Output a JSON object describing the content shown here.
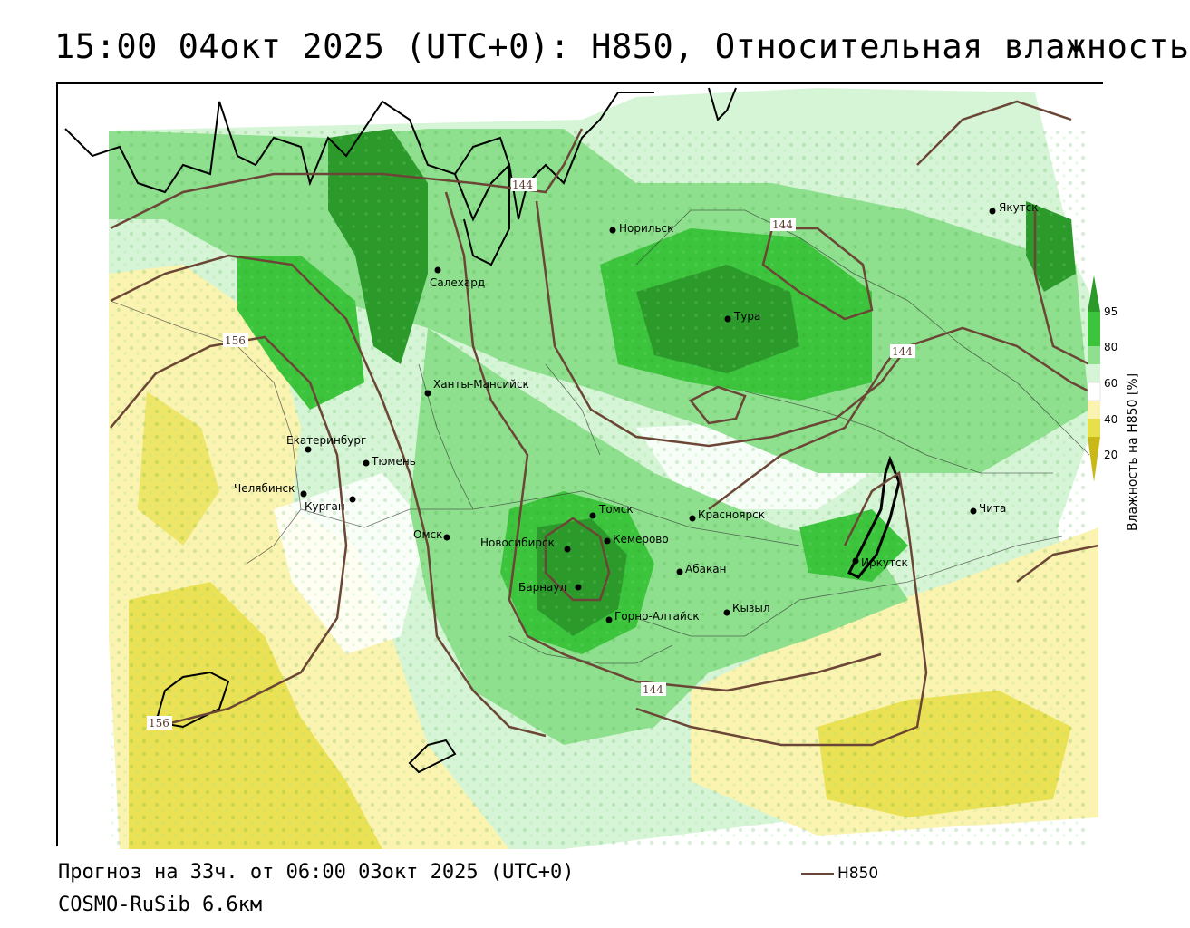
{
  "title": "15:00 04окт 2025 (UTC+0): H850, Относительная влажность",
  "forecast_line": "Прогноз на 33ч. от 06:00 03окт 2025 (UTC+0)",
  "model_line": "COSMO-RuSib 6.6км",
  "contour_legend": {
    "label": "H850",
    "color": "#6b4636"
  },
  "colorbar": {
    "title": "Влажность на H850 [%]",
    "ticks": [
      "95",
      "80",
      "60",
      "40",
      "20"
    ],
    "colors": [
      "#2b9a2b",
      "#3cc43c",
      "#8ee08e",
      "#d6f5d6",
      "#ffffff",
      "#fbf3b0",
      "#e8e04a",
      "#c8b818"
    ]
  },
  "cities": [
    {
      "name": "Салехард"
    },
    {
      "name": "Норильск"
    },
    {
      "name": "Якутск"
    },
    {
      "name": "Тура"
    },
    {
      "name": "Ханты-Мансийск"
    },
    {
      "name": "Екатеринбург"
    },
    {
      "name": "Тюмень"
    },
    {
      "name": "Челябинск"
    },
    {
      "name": "Курган"
    },
    {
      "name": "Омск"
    },
    {
      "name": "Новосибирск"
    },
    {
      "name": "Томск"
    },
    {
      "name": "Кемерово"
    },
    {
      "name": "Барнаул"
    },
    {
      "name": "Горно-Алтайск"
    },
    {
      "name": "Красноярск"
    },
    {
      "name": "Абакан"
    },
    {
      "name": "Кызыл"
    },
    {
      "name": "Иркутск"
    },
    {
      "name": "Чита"
    }
  ],
  "contour_values": [
    "144",
    "144",
    "144",
    "144",
    "156",
    "156"
  ]
}
